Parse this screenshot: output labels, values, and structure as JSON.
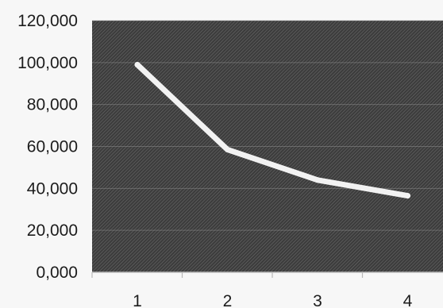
{
  "chart_data": {
    "type": "line",
    "title": "",
    "xlabel": "",
    "ylabel": "",
    "categories": [
      "1",
      "2",
      "3",
      "4"
    ],
    "series": [
      {
        "values": [
          99000,
          58500,
          44000,
          36500
        ]
      }
    ],
    "ylim": [
      0,
      120000
    ],
    "y_ticks": [
      0,
      20000,
      40000,
      60000,
      80000,
      100000,
      120000
    ],
    "y_tick_labels": [
      "0,000",
      "20,000",
      "40,000",
      "60,000",
      "80,000",
      "100,000",
      "120,000"
    ],
    "x_tick_labels": [
      "1",
      "2",
      "3",
      "4"
    ],
    "grid": "horizontal",
    "legend": "none",
    "colors": {
      "plot_background": "#4a4a4a",
      "line": "#f2f2f2",
      "page_background": "#f7f7f7",
      "text": "#1c1c1c"
    }
  }
}
